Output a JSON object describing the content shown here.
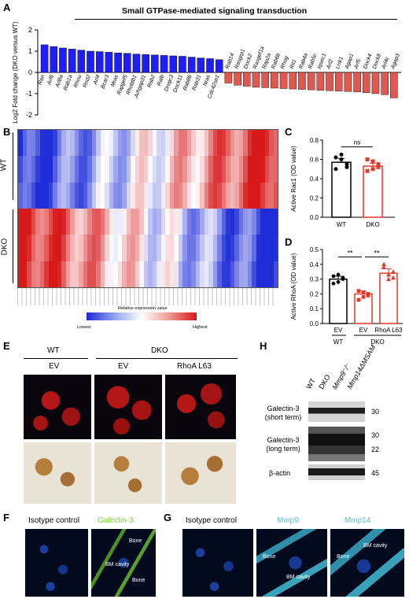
{
  "panels": {
    "A": {
      "label": "A",
      "title": "Small GTPase-mediated signaling transduction",
      "ylabel": "Log2 Fold change (DKO versus WT)",
      "yticks": [
        "2",
        "1",
        "0",
        "-1",
        "-2"
      ],
      "up_genes": [
        "Ran",
        "Arf6",
        "Arl8a",
        "Rab1a",
        "Rhou",
        "Rnd2",
        "Arl4",
        "Bcar3",
        "Mras",
        "Rapgef5",
        "Rhobtb1",
        "Arhgap31",
        "Rab2",
        "Ralb",
        "Dnajc3",
        "Dock11",
        "Rab8b",
        "Rab31",
        "Nras",
        "Cdc42se1"
      ],
      "down_genes": [
        "Rab14",
        "Rasgrp1",
        "Dock2",
        "Rasgef1a",
        "Rap2a",
        "Rab6b",
        "Rhog",
        "Rit1",
        "Rab4a",
        "Rab5c",
        "Iqsec1",
        "Arl2",
        "Lrrk1",
        "Agap1",
        "Arf5",
        "Dock4",
        "Dock8",
        "Arl4c",
        "Agap3"
      ]
    },
    "B": {
      "label": "B",
      "groups": [
        "WT",
        "DKO"
      ],
      "legend_title": "Relative expression value",
      "legend_low": "Lowest",
      "legend_high": "Highest"
    },
    "C": {
      "label": "C",
      "ylabel": "Active Rac1 (OD value)",
      "yticks": [
        "0.8",
        "0.6",
        "0.4",
        "0.2",
        "0.0"
      ],
      "categories": [
        "WT",
        "DKO"
      ],
      "sig": "ns"
    },
    "D": {
      "label": "D",
      "ylabel": "Active RhoA (OD value)",
      "yticks": [
        "0.5",
        "0.4",
        "0.3",
        "0.2",
        "0.1",
        "0.0"
      ],
      "categories": [
        "EV",
        "EV",
        "RhoA L63"
      ],
      "groups": [
        "WT",
        "DKO"
      ],
      "sig1": "**",
      "sig2": "**"
    },
    "E": {
      "label": "E",
      "groups": [
        "WT",
        "DKO"
      ],
      "conditions": [
        "EV",
        "EV",
        "RhoA L63"
      ]
    },
    "H": {
      "label": "H",
      "lanes": [
        "WT",
        "DKO",
        "Mmp9⁻/⁻",
        "Mmp14ΔMSAM"
      ],
      "rows": [
        "Galectin-3 (short term)",
        "Galectin-3 (long term)",
        "β-actin"
      ],
      "mw": [
        "30",
        "30",
        "22",
        "45"
      ]
    },
    "F": {
      "label": "F",
      "captions": [
        "Isotype control",
        "Galectin-3"
      ],
      "tissue": [
        "Bone",
        "BM cavity",
        "Bone"
      ]
    },
    "G": {
      "label": "G",
      "captions": [
        "Isotype control",
        "Mmp9",
        "Mmp14"
      ],
      "tissue": [
        "Bone",
        "BM cavity",
        "Bone",
        "BM cavity"
      ]
    }
  },
  "chart_data": [
    {
      "type": "bar",
      "panel": "A",
      "title": "Small GTPase-mediated signaling transduction",
      "ylabel": "Log2 Fold change (DKO versus WT)",
      "ylim": [
        -2,
        2
      ],
      "categories": [
        "Ran",
        "Arf6",
        "Arl8a",
        "Rab1a",
        "Rhou",
        "Rnd2",
        "Arl4",
        "Bcar3",
        "Mras",
        "Rapgef5",
        "Rhobtb1",
        "Arhgap31",
        "Rab2",
        "Ralb",
        "Dnajc3",
        "Dock11",
        "Rab8b",
        "Rab31",
        "Nras",
        "Cdc42se1",
        "Rab14",
        "Rasgrp1",
        "Dock2",
        "Rasgef1a",
        "Rap2a",
        "Rab6b",
        "Rhog",
        "Rit1",
        "Rab4a",
        "Rab5c",
        "Iqsec1",
        "Arl2",
        "Lrrk1",
        "Agap1",
        "Arf5",
        "Dock4",
        "Dock8",
        "Arl4c",
        "Agap3"
      ],
      "values": [
        1.3,
        1.22,
        1.15,
        1.1,
        1.05,
        1.0,
        0.98,
        0.95,
        0.92,
        0.9,
        0.86,
        0.84,
        0.82,
        0.8,
        0.78,
        0.76,
        0.72,
        0.68,
        0.65,
        0.6,
        -0.5,
        -0.6,
        -0.65,
        -0.7,
        -0.72,
        -0.74,
        -0.76,
        -0.78,
        -0.8,
        -0.82,
        -0.84,
        -0.86,
        -0.88,
        -0.9,
        -0.92,
        -0.95,
        -1.0,
        -1.05,
        -1.2
      ],
      "colors": {
        "up": "#1f1ff5",
        "down": "#e0584f"
      }
    },
    {
      "type": "bar",
      "panel": "C",
      "ylabel": "Active Rac1 (OD value)",
      "ylim": [
        0,
        0.8
      ],
      "categories": [
        "WT",
        "DKO"
      ],
      "values": [
        0.57,
        0.53
      ],
      "errors": [
        0.04,
        0.03
      ],
      "points": [
        [
          0.62,
          0.6,
          0.55,
          0.5,
          0.65,
          0.52
        ],
        [
          0.6,
          0.5,
          0.55,
          0.48,
          0.58,
          0.52
        ]
      ]
    },
    {
      "type": "bar",
      "panel": "D",
      "ylabel": "Active RhoA (OD value)",
      "ylim": [
        0,
        0.5
      ],
      "categories": [
        "EV",
        "EV",
        "RhoA L63"
      ],
      "values": [
        0.3,
        0.2,
        0.34
      ],
      "errors": [
        0.02,
        0.02,
        0.03
      ],
      "points": [
        [
          0.32,
          0.28,
          0.3,
          0.27,
          0.33,
          0.31
        ],
        [
          0.22,
          0.18,
          0.2,
          0.16,
          0.21,
          0.19
        ],
        [
          0.38,
          0.3,
          0.35,
          0.4,
          0.33,
          0.31
        ]
      ]
    }
  ]
}
